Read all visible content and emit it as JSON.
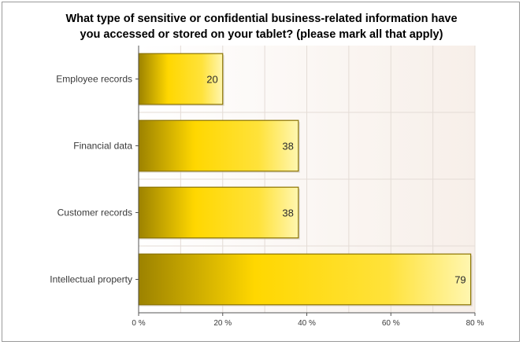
{
  "chart_data": {
    "type": "bar",
    "orientation": "horizontal",
    "title": [
      "What type of sensitive or confidential business-related information have",
      "you accessed or stored on your tablet? (please mark all that apply)"
    ],
    "categories": [
      "Employee records",
      "Financial data",
      "Customer records",
      "Intellectual property"
    ],
    "values": [
      20,
      38,
      38,
      79
    ],
    "value_labels": [
      "20",
      "38",
      "38",
      "79"
    ],
    "xlim": [
      0,
      80
    ],
    "xticks": [
      0,
      20,
      40,
      60,
      80
    ],
    "xtick_labels": [
      "0 %",
      "20 %",
      "40 %",
      "60 %",
      "80 %"
    ],
    "xlabel": "",
    "ylabel": "",
    "grid": true,
    "legend": "none",
    "colors": {
      "bar_dark": "#9c8200",
      "bar_mid": "#ffd700",
      "bar_light": "#fff6b0",
      "bar_border": "#8a7200",
      "plot_bg": "#fdfaf6",
      "grid": "#e4dcd6",
      "axis": "#555555"
    }
  }
}
